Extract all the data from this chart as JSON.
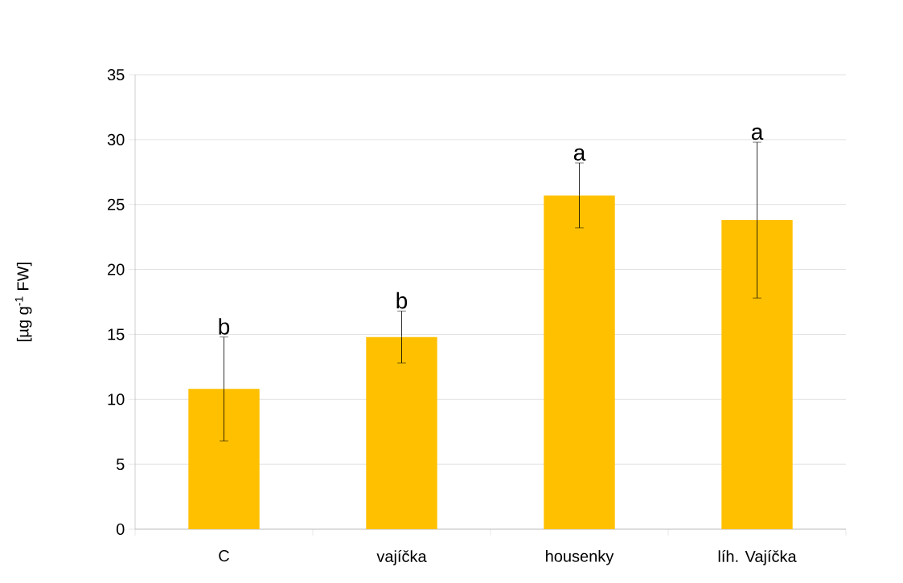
{
  "chart_data": {
    "type": "bar",
    "ylabel": "[µg g$^{-1}$ FW]",
    "categories": [
      "C",
      "vajíčka",
      "housenky",
      "líh. Vajíčka"
    ],
    "values": [
      10.8,
      14.8,
      25.7,
      23.8
    ],
    "errors": [
      4.0,
      2.0,
      2.5,
      6.0
    ],
    "color": "#ffc000",
    "ylim": [
      0,
      35
    ],
    "yticks": [
      0,
      5,
      10,
      15,
      20,
      25,
      30,
      35
    ],
    "grid": "y",
    "annotations": [
      {
        "text": "b",
        "x": "C",
        "y": 14.8
      },
      {
        "text": "b",
        "x": "vajíčka",
        "y": 16.8
      },
      {
        "text": "a",
        "x": "housenky",
        "y": 28.2
      },
      {
        "text": "a",
        "x": "líh. Vajíčka",
        "y": 29.8
      }
    ]
  }
}
